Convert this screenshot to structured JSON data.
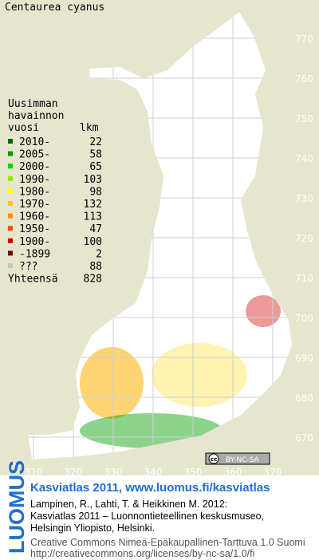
{
  "title": "Centaurea cyanus",
  "legend": {
    "heading": [
      "Uusimman",
      "havainnon",
      "vuosi"
    ],
    "count_heading": "lkm",
    "rows": [
      {
        "label": "2010-",
        "count": 22,
        "color": "#006400"
      },
      {
        "label": "2005-",
        "count": 58,
        "color": "#009a00"
      },
      {
        "label": "2000-",
        "count": 65,
        "color": "#00d800"
      },
      {
        "label": "1990-",
        "count": 103,
        "color": "#8ee800"
      },
      {
        "label": "1980-",
        "count": 98,
        "color": "#ffff00"
      },
      {
        "label": "1970-",
        "count": 132,
        "color": "#ffc800"
      },
      {
        "label": "1960-",
        "count": 113,
        "color": "#ff8c00"
      },
      {
        "label": "1950-",
        "count": 47,
        "color": "#ff4a00"
      },
      {
        "label": "1900-",
        "count": 100,
        "color": "#d00000"
      },
      {
        "label": "-1899",
        "count": 2,
        "color": "#7a0000"
      },
      {
        "label": "???",
        "count": 88,
        "color": "#c8c8c8"
      }
    ],
    "total": {
      "label": "Yhteensä",
      "count": 828
    }
  },
  "map": {
    "xticks": [
      310,
      320,
      330,
      340,
      350,
      360,
      370
    ],
    "yticks": [
      670,
      680,
      690,
      700,
      710,
      720,
      730,
      740,
      750,
      760,
      770
    ]
  },
  "badge": {
    "icon": "cc",
    "text": "BY-NC-SA"
  },
  "logo": "LUOMUS",
  "footer": {
    "link": "Kasviatlas 2011, www.luomus.fi/kasviatlas",
    "citation": [
      "Lampinen, R., Lahti, T. & Heikkinen M. 2012:",
      "Kasviatlas 2011 – Luonnontieteellinen keskusmuseo,",
      "Helsingin Yliopisto, Helsinki."
    ],
    "license": [
      "Creative Commons Nimeä-Epäkaupallinen-Tarttuva 1.0 Suomi",
      "http://creativecommons.org/licenses/by-nc-sa/1.0/fi"
    ]
  }
}
